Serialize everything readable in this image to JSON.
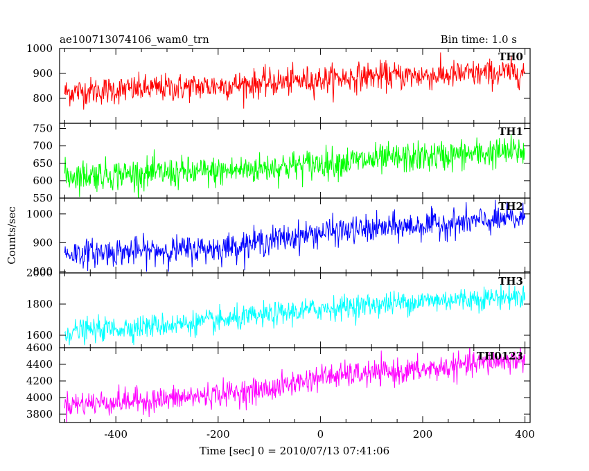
{
  "chart_data": {
    "type": "line",
    "title": "ae100713074106_wam0_trn",
    "bin_time": "Bin time: 1.0 s",
    "xlabel": "Time [sec] 0 = 2010/07/13 07:41:06",
    "ylabel": "Counts/sec",
    "xlim": [
      -510,
      410
    ],
    "x_range": [
      -500,
      400
    ],
    "x_ticks": [
      -400,
      -200,
      0,
      200,
      400
    ],
    "grid": false,
    "legend": "none",
    "panels": [
      {
        "name": "TH0",
        "color": "#ff0000",
        "ylim": [
          700,
          1000
        ],
        "y_ticks": [
          800,
          900,
          1000
        ],
        "trend": [
          [
            -500,
            825
          ],
          [
            -200,
            850
          ],
          [
            0,
            875
          ],
          [
            100,
            890
          ],
          [
            200,
            890
          ],
          [
            400,
            905
          ]
        ],
        "noise": 28
      },
      {
        "name": "TH1",
        "color": "#00ff00",
        "ylim": [
          550,
          765
        ],
        "y_ticks": [
          550,
          600,
          650,
          700,
          750
        ],
        "trend": [
          [
            -500,
            615
          ],
          [
            -200,
            625
          ],
          [
            0,
            650
          ],
          [
            200,
            668
          ],
          [
            400,
            685
          ]
        ],
        "noise": 22
      },
      {
        "name": "TH2",
        "color": "#0000ff",
        "ylim": [
          795,
          1055
        ],
        "y_ticks": [
          800,
          900,
          1000
        ],
        "trend": [
          [
            -500,
            862
          ],
          [
            -200,
            880
          ],
          [
            0,
            935
          ],
          [
            200,
            960
          ],
          [
            400,
            985
          ]
        ],
        "noise": 24
      },
      {
        "name": "TH3",
        "color": "#00ffff",
        "ylim": [
          1520,
          2000
        ],
        "y_ticks": [
          1600,
          1800,
          2000
        ],
        "trend": [
          [
            -500,
            1620
          ],
          [
            -200,
            1690
          ],
          [
            0,
            1770
          ],
          [
            200,
            1820
          ],
          [
            400,
            1850
          ]
        ],
        "noise": 38
      },
      {
        "name": "TH0123",
        "color": "#ff00ff",
        "ylim": [
          3700,
          4600
        ],
        "y_ticks": [
          3800,
          4000,
          4200,
          4400,
          4600
        ],
        "trend": [
          [
            -500,
            3920
          ],
          [
            -300,
            3980
          ],
          [
            -100,
            4100
          ],
          [
            0,
            4250
          ],
          [
            200,
            4330
          ],
          [
            400,
            4470
          ]
        ],
        "noise": 75
      }
    ]
  }
}
